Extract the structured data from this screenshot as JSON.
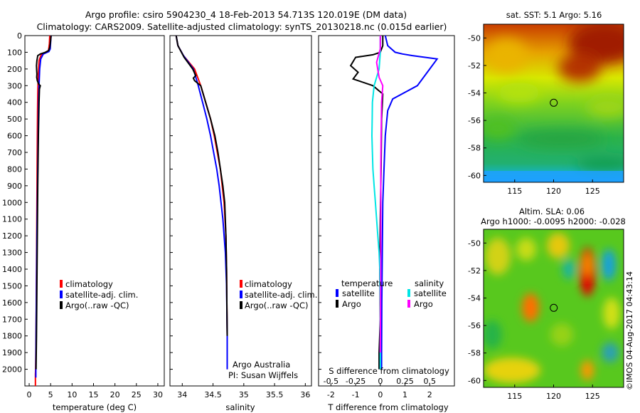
{
  "header": {
    "line1": "Argo profile: csiro 5904230_4 18-Feb-2013 54.713S 120.019E (DM data)",
    "line2": "Climatology: CARS2009. Satellite-adjusted climatology: synTS_20130218.nc (0.015d earlier)"
  },
  "colors": {
    "climatology": "#ff0000",
    "satellite": "#0000ff",
    "argo": "#000000",
    "sal_sat": "#00e5e5",
    "sal_argo": "#ff00ff"
  },
  "credits": {
    "argo_australia": "Argo Australia",
    "pi": "PI: Susan Wijffels",
    "imos": "©IMOS 04-Aug-2017 04:43:14"
  },
  "chart_data": [
    {
      "id": "temperature",
      "type": "line",
      "xlabel": "temperature (deg C)",
      "ylabel": "",
      "xlim": [
        -1,
        31.5
      ],
      "ylim": [
        2100,
        0
      ],
      "xticks": [
        "0",
        "5",
        "10",
        "15",
        "20",
        "25",
        "30"
      ],
      "xtick_values": [
        0,
        5,
        10,
        15,
        20,
        25,
        30
      ],
      "yticks": [
        "0",
        "100",
        "200",
        "300",
        "400",
        "500",
        "600",
        "700",
        "800",
        "900",
        "1000",
        "1100",
        "1200",
        "1300",
        "1400",
        "1500",
        "1600",
        "1700",
        "1800",
        "1900",
        "2000"
      ],
      "ytick_values": [
        0,
        100,
        200,
        300,
        400,
        500,
        600,
        700,
        800,
        900,
        1000,
        1100,
        1200,
        1300,
        1400,
        1500,
        1600,
        1700,
        1800,
        1900,
        2000
      ],
      "legend": [
        "climatology",
        "satellite-adj. clim.",
        "Argo(..raw -QC)"
      ],
      "series": [
        {
          "name": "climatology",
          "color": "#ff0000",
          "x": [
            4.8,
            4.7,
            4.5,
            3.8,
            2.8,
            2.3,
            2.1,
            2.0,
            1.95,
            1.9,
            1.85,
            1.8,
            1.75,
            1.7,
            1.65,
            1.6,
            1.55,
            1.5,
            1.45,
            1.45,
            1.45
          ],
          "y": [
            0,
            50,
            90,
            100,
            115,
            150,
            250,
            350,
            450,
            600,
            800,
            1000,
            1200,
            1400,
            1600,
            1800,
            1900,
            2000,
            2030,
            2060,
            2100
          ]
        },
        {
          "name": "satellite-adj. clim.",
          "color": "#0000ff",
          "x": [
            5.1,
            5.0,
            4.9,
            4.6,
            3.3,
            2.7,
            2.45,
            2.3,
            2.2,
            2.1,
            2.0,
            1.9,
            1.8,
            1.7,
            1.6,
            1.55,
            1.55
          ],
          "y": [
            0,
            40,
            80,
            95,
            110,
            140,
            200,
            300,
            400,
            600,
            800,
            1000,
            1200,
            1500,
            1800,
            2000,
            2050
          ]
        },
        {
          "name": "Argo(..raw -QC)",
          "color": "#000000",
          "x": [
            5.1,
            5.0,
            4.8,
            4.5,
            3.8,
            2.6,
            2.0,
            1.8,
            1.7,
            1.75,
            1.8,
            1.75,
            1.9,
            2.2,
            2.6,
            2.4,
            2.3,
            2.15,
            2.0,
            1.9,
            1.8,
            1.7,
            1.6
          ],
          "y": [
            0,
            30,
            70,
            90,
            100,
            110,
            120,
            150,
            180,
            210,
            230,
            250,
            270,
            290,
            300,
            320,
            400,
            600,
            900,
            1200,
            1500,
            1800,
            2000
          ]
        }
      ]
    },
    {
      "id": "salinity",
      "type": "line",
      "xlabel": "salinity",
      "ylabel": "",
      "xlim": [
        33.8,
        36.1
      ],
      "ylim": [
        2100,
        0
      ],
      "xticks": [
        "34",
        "34.5",
        "35",
        "35.5",
        "36"
      ],
      "xtick_values": [
        34,
        34.5,
        35,
        35.5,
        36
      ],
      "legend": [
        "climatology",
        "satellite-adj. clim.",
        "Argo(..raw -QC)"
      ],
      "series": [
        {
          "name": "climatology",
          "color": "#ff0000",
          "x": [
            33.9,
            33.93,
            34.02,
            34.2,
            34.3,
            34.38,
            34.46,
            34.52,
            34.57,
            34.62,
            34.65,
            34.68,
            34.71,
            34.72,
            34.725,
            34.73,
            34.73
          ],
          "y": [
            0,
            60,
            120,
            200,
            300,
            400,
            500,
            600,
            700,
            800,
            900,
            1000,
            1200,
            1400,
            1600,
            1800,
            2000
          ]
        },
        {
          "name": "satellite-adj. clim.",
          "color": "#0000ff",
          "x": [
            33.9,
            33.93,
            34.02,
            34.18,
            34.26,
            34.33,
            34.4,
            34.46,
            34.51,
            34.56,
            34.6,
            34.63,
            34.66,
            34.7,
            34.72,
            34.73,
            34.73
          ],
          "y": [
            0,
            60,
            120,
            200,
            300,
            400,
            500,
            600,
            700,
            800,
            900,
            1000,
            1100,
            1300,
            1500,
            1800,
            2000
          ]
        },
        {
          "name": "Argo(..raw -QC)",
          "color": "#000000",
          "x": [
            33.9,
            33.93,
            34.03,
            34.17,
            34.22,
            34.18,
            34.2,
            34.3,
            34.38,
            34.46,
            34.53,
            34.58,
            34.62,
            34.66,
            34.69,
            34.71,
            34.72,
            34.725,
            34.73
          ],
          "y": [
            0,
            60,
            130,
            200,
            240,
            255,
            270,
            300,
            400,
            500,
            600,
            700,
            800,
            900,
            1000,
            1200,
            1400,
            1600,
            1800
          ]
        }
      ]
    },
    {
      "id": "difference",
      "type": "line",
      "xlabel": "T difference from climatology",
      "xlabel_top": "S difference from climatology",
      "xlim": [
        -2.5,
        3
      ],
      "ylim": [
        2100,
        0
      ],
      "xticks": [
        "-2",
        "-1",
        "0",
        "1",
        "2"
      ],
      "xtick_values": [
        -2,
        -1,
        0,
        1,
        2
      ],
      "sticks": [
        "-0.5",
        "-0.25",
        "0",
        "0.25",
        "0.5"
      ],
      "stick_values": [
        -0.5,
        -0.25,
        0,
        0.25,
        0.5
      ],
      "legend_temperature_title": "temperature",
      "legend_salinity_title": "salinity",
      "legend": [
        "satellite",
        "Argo",
        "satellite",
        "Argo"
      ],
      "series": [
        {
          "name": "temperature satellite",
          "color": "#0000ff",
          "x": [
            0.2,
            0.3,
            0.6,
            0.9,
            1.3,
            2.3,
            2.0,
            1.5,
            0.5,
            0.3,
            0.2,
            0.15,
            0.1,
            0.08,
            0.06,
            0.05,
            0.05
          ],
          "y": [
            0,
            60,
            100,
            110,
            120,
            140,
            200,
            300,
            380,
            450,
            600,
            800,
            1000,
            1300,
            1600,
            1900,
            2000
          ]
        },
        {
          "name": "temperature Argo",
          "color": "#000000",
          "x": [
            0.1,
            0.1,
            0.0,
            -0.3,
            -1.0,
            -1.2,
            -0.9,
            -1.1,
            -0.3,
            0.1,
            0.05,
            0.03,
            0.0,
            -0.02,
            0.0,
            -0.05,
            -0.05
          ],
          "y": [
            0,
            60,
            100,
            115,
            130,
            180,
            220,
            260,
            300,
            350,
            500,
            800,
            1100,
            1400,
            1700,
            1900,
            2000
          ]
        },
        {
          "name": "salinity satellite",
          "color": "#00e5e5",
          "x": [
            0.0,
            0.0,
            -0.05,
            -0.25,
            -0.32,
            -0.33,
            -0.34,
            -0.32,
            -0.3,
            -0.25,
            -0.2,
            -0.15,
            -0.1,
            -0.05,
            -0.02,
            0.0,
            0.0
          ],
          "y": [
            0,
            100,
            200,
            300,
            400,
            500,
            600,
            700,
            800,
            900,
            1000,
            1100,
            1200,
            1300,
            1400,
            1600,
            2000
          ]
        },
        {
          "name": "salinity Argo",
          "color": "#ff00ff",
          "x": [
            0.0,
            0.0,
            -0.15,
            -0.05,
            0.1,
            0.05,
            0.03,
            0.02,
            0.02,
            0.02,
            0.01,
            0.0
          ],
          "y": [
            0,
            80,
            160,
            250,
            300,
            400,
            600,
            800,
            1000,
            1300,
            1600,
            1900
          ]
        }
      ]
    },
    {
      "id": "sst_map",
      "type": "heatmap",
      "title": "sat. SST: 5.1 Argo: 5.16",
      "xlim": [
        111,
        129
      ],
      "ylim": [
        -60.5,
        -49
      ],
      "xticks": [
        "115",
        "120",
        "125"
      ],
      "xtick_values": [
        115,
        120,
        125
      ],
      "yticks": [
        "-50",
        "-52",
        "-54",
        "-56",
        "-58",
        "-60"
      ],
      "ytick_values": [
        -50,
        -52,
        -54,
        -56,
        -58,
        -60
      ],
      "marker": {
        "lon": 120.019,
        "lat": -54.713
      }
    },
    {
      "id": "sla_map",
      "type": "heatmap",
      "title": "Altim. SLA: 0.06",
      "subtitle": "Argo h1000: -0.0095 h2000: -0.028",
      "xlim": [
        111,
        129
      ],
      "ylim": [
        -60.5,
        -49
      ],
      "xticks": [
        "115",
        "120",
        "125"
      ],
      "xtick_values": [
        115,
        120,
        125
      ],
      "yticks": [
        "-50",
        "-52",
        "-54",
        "-56",
        "-58",
        "-60"
      ],
      "ytick_values": [
        -50,
        -52,
        -54,
        -56,
        -58,
        -60
      ],
      "marker": {
        "lon": 120.019,
        "lat": -54.713
      }
    }
  ]
}
